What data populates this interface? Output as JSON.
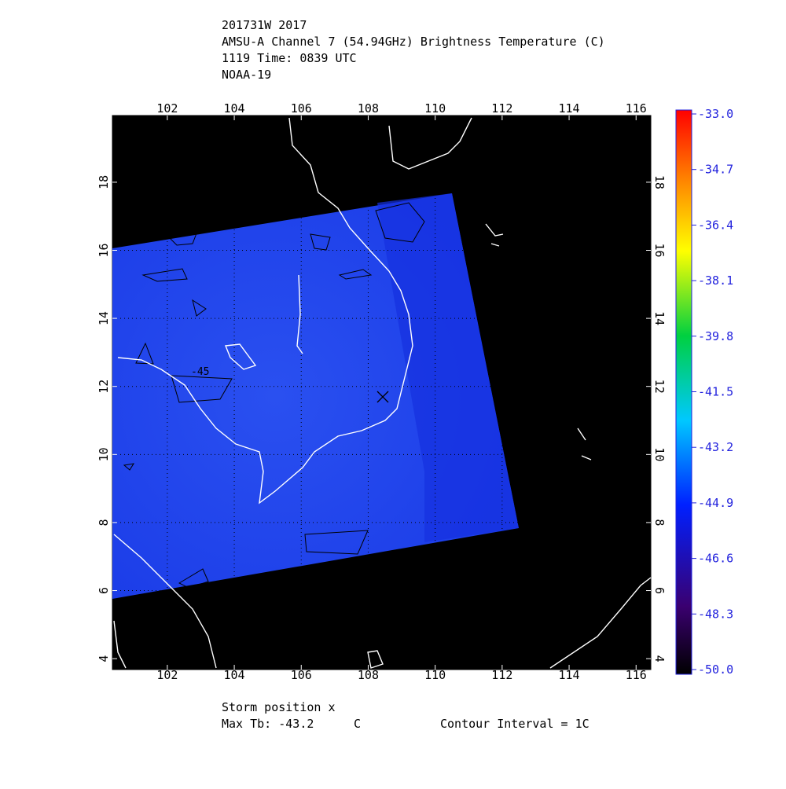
{
  "header": {
    "lines": [
      "201731W 2017",
      "AMSU-A Channel 7 (54.94GHz) Brightness Temperature (C)",
      "1119 Time: 0839 UTC",
      "NOAA-19"
    ]
  },
  "map": {
    "xlim": [
      100.36,
      116.44
    ],
    "ylim": [
      3.68,
      19.96
    ],
    "xticks": [
      102,
      104,
      106,
      108,
      110,
      112,
      114,
      116
    ],
    "yticks": [
      4,
      6,
      8,
      10,
      12,
      14,
      16,
      18
    ],
    "contour_label": "-45"
  },
  "colorbar": {
    "range": [
      -50,
      -33
    ],
    "ticks": [
      {
        "value": -33,
        "label": "-33.0"
      },
      {
        "value": -34.7,
        "label": "-34.7"
      },
      {
        "value": -36.4,
        "label": "-36.4"
      },
      {
        "value": -38.1,
        "label": "-38.1"
      },
      {
        "value": -39.8,
        "label": "-39.8"
      },
      {
        "value": -41.5,
        "label": "-41.5"
      },
      {
        "value": -43.2,
        "label": "-43.2"
      },
      {
        "value": -44.9,
        "label": "-44.9"
      },
      {
        "value": -46.6,
        "label": "-46.6"
      },
      {
        "value": -48.3,
        "label": "-48.3"
      },
      {
        "value": -50,
        "label": "-50.0"
      }
    ]
  },
  "footer": {
    "storm": "Storm position x",
    "max_tb": "Max Tb: -43.2",
    "unit": "C",
    "contour_interval": "Contour Interval = 1C"
  }
}
